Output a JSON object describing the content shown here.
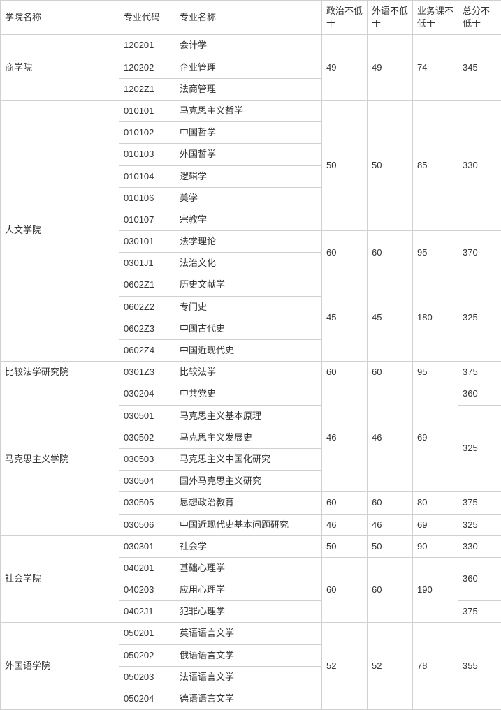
{
  "colors": {
    "border": "#d0d0d0",
    "text": "#333333",
    "background": "#ffffff"
  },
  "typography": {
    "font_family": "Microsoft YaHei",
    "font_size_pt": 10
  },
  "headers": {
    "college": "学院名称",
    "major_code": "专业代码",
    "major_name": "专业名称",
    "politics": "政治不低于",
    "foreign": "外语不低于",
    "business": "业务课不低于",
    "total": "总分不低于"
  },
  "colleges": {
    "business": "商学院",
    "humanities": "人文学院",
    "comparative_law": "比较法学研究院",
    "marxism": "马克思主义学院",
    "social": "社会学院",
    "foreign_lang": "外国语学院"
  },
  "majors": {
    "m120201": "会计学",
    "m120202": "企业管理",
    "m1202Z1": "法商管理",
    "m010101": "马克思主义哲学",
    "m010102": "中国哲学",
    "m010103": "外国哲学",
    "m010104": "逻辑学",
    "m010106": "美学",
    "m010107": "宗教学",
    "m030101": "法学理论",
    "m0301J1": "法治文化",
    "m0602Z1": "历史文献学",
    "m0602Z2": "专门史",
    "m0602Z3": "中国古代史",
    "m0602Z4": "中国近现代史",
    "m0301Z3": "比较法学",
    "m030204": "中共党史",
    "m030501": "马克思主义基本原理",
    "m030502": "马克思主义发展史",
    "m030503": "马克思主义中国化研究",
    "m030504": "国外马克思主义研究",
    "m030505": "思想政治教育",
    "m030506": "中国近现代史基本问题研究",
    "m030301": "社会学",
    "m040201": "基础心理学",
    "m040203": "应用心理学",
    "m0402J1": "犯罪心理学",
    "m050201": "英语语言文学",
    "m050202": "俄语语言文学",
    "m050203": "法语语言文学",
    "m050204": "德语语言文学"
  },
  "codes": {
    "c120201": "120201",
    "c120202": "120202",
    "c1202Z1": "1202Z1",
    "c010101": "010101",
    "c010102": "010102",
    "c010103": "010103",
    "c010104": "010104",
    "c010106": "010106",
    "c010107": "010107",
    "c030101": "030101",
    "c0301J1": "0301J1",
    "c0602Z1": "0602Z1",
    "c0602Z2": "0602Z2",
    "c0602Z3": "0602Z3",
    "c0602Z4": "0602Z4",
    "c0301Z3": "0301Z3",
    "c030204": "030204",
    "c030501": "030501",
    "c030502": "030502",
    "c030503": "030503",
    "c030504": "030504",
    "c030505": "030505",
    "c030506": "030506",
    "c030301": "030301",
    "c040201": "040201",
    "c040203": "040203",
    "c0402J1": "0402J1",
    "c050201": "050201",
    "c050202": "050202",
    "c050203": "050203",
    "c050204": "050204"
  },
  "scores": {
    "s49": "49",
    "s74": "74",
    "s345": "345",
    "s50": "50",
    "s85": "85",
    "s330": "330",
    "s60": "60",
    "s95": "95",
    "s370": "370",
    "s45": "45",
    "s180": "180",
    "s325": "325",
    "s375": "375",
    "s46": "46",
    "s69": "69",
    "s360": "360",
    "s80": "80",
    "s90": "90",
    "s190": "190",
    "s52": "52",
    "s78": "78",
    "s355": "355"
  }
}
